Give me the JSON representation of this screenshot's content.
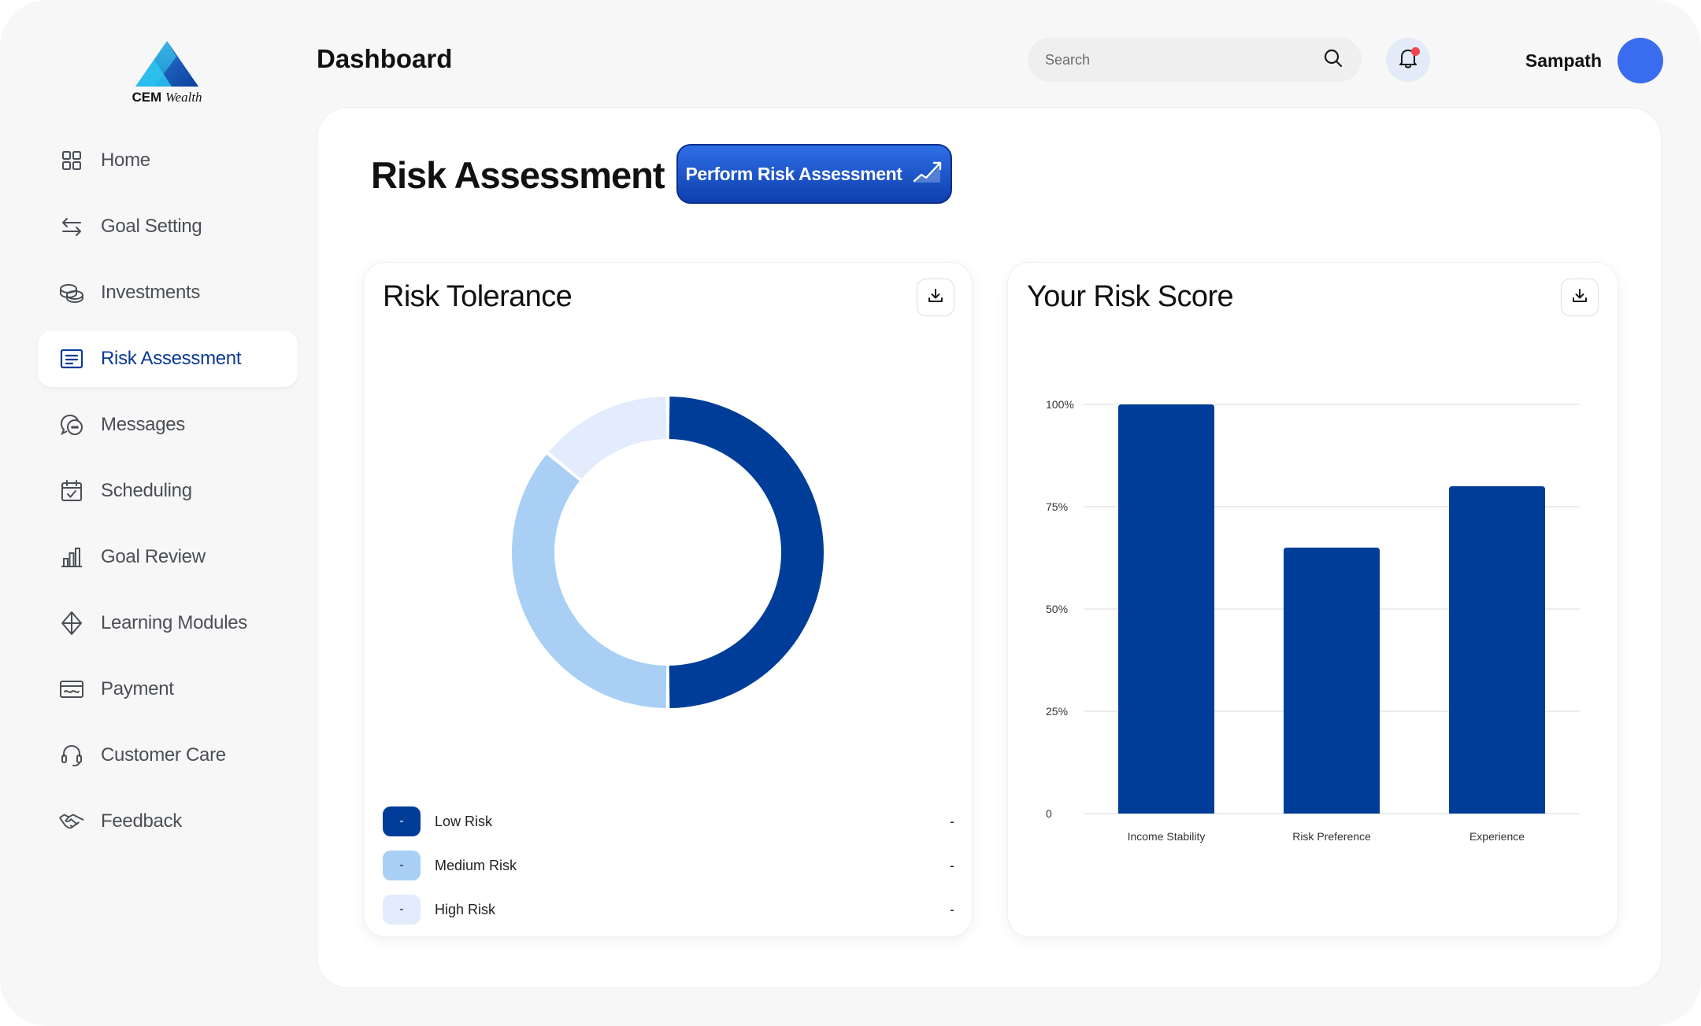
{
  "brand": {
    "name": "CEM",
    "name_script": "Wealth",
    "color_top": "#3ab5e6",
    "color_bottom": "#0a3a94"
  },
  "sidebar": {
    "items": [
      {
        "label": "Home",
        "icon": "grid-icon",
        "active": false
      },
      {
        "label": "Goal Setting",
        "icon": "arrows-swap-icon",
        "active": false
      },
      {
        "label": "Investments",
        "icon": "coins-icon",
        "active": false
      },
      {
        "label": "Risk Assessment",
        "icon": "document-lines-icon",
        "active": true
      },
      {
        "label": "Messages",
        "icon": "chat-bubbles-icon",
        "active": false
      },
      {
        "label": "Scheduling",
        "icon": "calendar-check-icon",
        "active": false
      },
      {
        "label": "Goal Review",
        "icon": "bar-chart-icon",
        "active": false
      },
      {
        "label": "Learning Modules",
        "icon": "diamond-icon",
        "active": false
      },
      {
        "label": "Payment",
        "icon": "wallet-icon",
        "active": false
      },
      {
        "label": "Customer Care",
        "icon": "headset-icon",
        "active": false
      },
      {
        "label": "Feedback",
        "icon": "handshake-icon",
        "active": false
      }
    ]
  },
  "header": {
    "title": "Dashboard",
    "search_placeholder": "Search",
    "user_name": "Sampath",
    "notification_dot": true
  },
  "main": {
    "title": "Risk Assessment",
    "cta_label": "Perform Risk Assessment"
  },
  "risk_tolerance": {
    "title": "Risk Tolerance",
    "legend": [
      {
        "label": "Low Risk",
        "swatch_text": "-",
        "value": "-",
        "color": "#003d99",
        "text_color": "#ffffff"
      },
      {
        "label": "Medium Risk",
        "swatch_text": "-",
        "value": "-",
        "color": "#a9cff4",
        "text_color": "#1a1a1a"
      },
      {
        "label": "High Risk",
        "swatch_text": "-",
        "value": "-",
        "color": "#e3ecfc",
        "text_color": "#1a1a1a"
      }
    ]
  },
  "risk_score": {
    "title": "Your Risk Score"
  },
  "chart_data": [
    {
      "type": "pie",
      "donut": true,
      "labels": [
        "Low Risk",
        "Medium Risk",
        "High Risk"
      ],
      "values": [
        50,
        36,
        14
      ],
      "colors": [
        "#003d99",
        "#a9cff4",
        "#e3ecfc"
      ]
    },
    {
      "type": "bar",
      "categories": [
        "Income Stability",
        "Risk Preference",
        "Experience"
      ],
      "values": [
        100,
        65,
        80
      ],
      "ylim": [
        0,
        100
      ],
      "yticks": [
        0,
        25,
        50,
        75,
        100
      ],
      "ytick_labels": [
        "0",
        "25%",
        "50%",
        "75%",
        "100%"
      ],
      "grid": true,
      "color": "#003d99"
    }
  ]
}
